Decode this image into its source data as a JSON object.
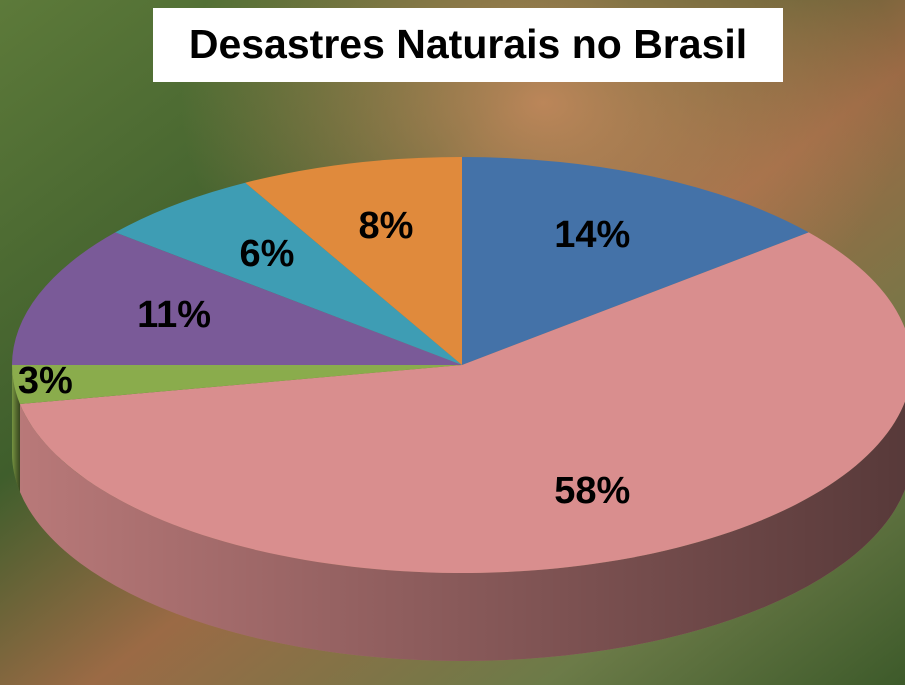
{
  "chart_data": {
    "type": "pie",
    "title": "Desastres Naturais no Brasil",
    "values": [
      14,
      58,
      3,
      11,
      6,
      8
    ],
    "value_labels": [
      "14%",
      "58%",
      "3%",
      "11%",
      "6%",
      "8%"
    ],
    "colors": [
      "#4472a8",
      "#d98e8e",
      "#8aac4c",
      "#7a5a98",
      "#3e9db4",
      "#e08a3c"
    ]
  }
}
